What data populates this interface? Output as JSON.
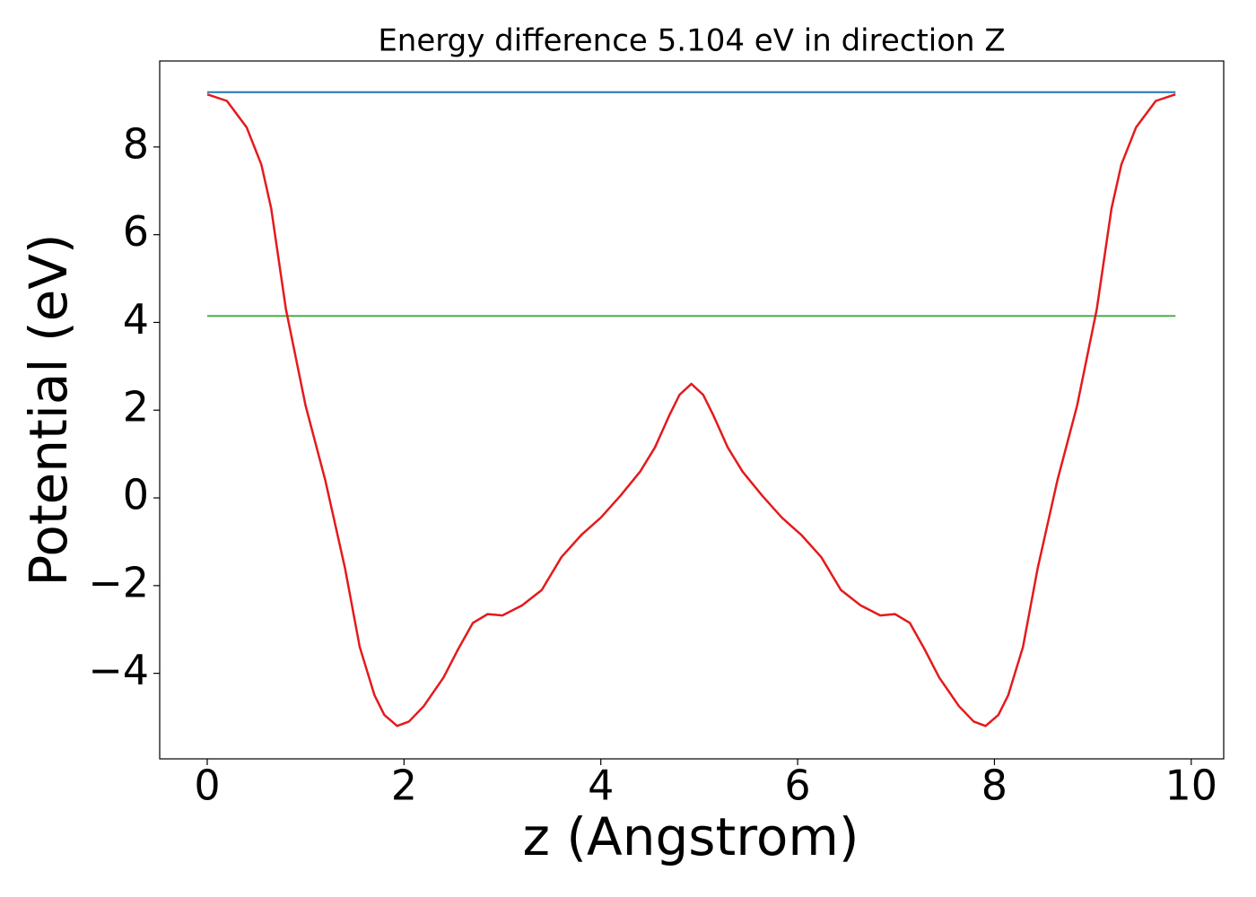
{
  "chart_data": {
    "type": "line",
    "title": "Energy difference 5.104 eV in direction Z",
    "xlabel": "z (Angstrom)",
    "ylabel": "Potential (eV)",
    "xlim": [
      -0.483,
      10.33
    ],
    "ylim": [
      -5.95,
      9.96
    ],
    "xticks": [
      0,
      2,
      4,
      6,
      8,
      10
    ],
    "yticks": [
      {
        "value": -4,
        "label": "−4"
      },
      {
        "value": -2,
        "label": "−2"
      },
      0,
      2,
      4,
      6,
      8
    ],
    "series": [
      {
        "color": "#1f77b4",
        "x": [
          0,
          9.84
        ],
        "values": [
          9.25,
          9.25
        ]
      },
      {
        "color": "#4daf4a",
        "x": [
          0,
          9.84
        ],
        "values": [
          4.146,
          4.146
        ]
      },
      {
        "color": "#e41a1c",
        "x": [
          0,
          0.2,
          0.4,
          0.55,
          0.65,
          0.8,
          1.0,
          1.2,
          1.4,
          1.55,
          1.7,
          1.8,
          1.93,
          2.05,
          2.2,
          2.4,
          2.55,
          2.7,
          2.85,
          3.0,
          3.2,
          3.4,
          3.6,
          3.8,
          4.0,
          4.2,
          4.4,
          4.55,
          4.7,
          4.8,
          4.92,
          5.04,
          5.14,
          5.29,
          5.44,
          5.64,
          5.84,
          6.04,
          6.24,
          6.44,
          6.64,
          6.84,
          6.99,
          7.14,
          7.29,
          7.44,
          7.64,
          7.79,
          7.91,
          8.04,
          8.14,
          8.29,
          8.44,
          8.64,
          8.84,
          9.04,
          9.19,
          9.29,
          9.44,
          9.64,
          9.84
        ],
        "values": [
          9.2,
          9.05,
          8.45,
          7.6,
          6.6,
          4.3,
          2.1,
          0.4,
          -1.6,
          -3.4,
          -4.5,
          -4.95,
          -5.2,
          -5.1,
          -4.75,
          -4.1,
          -3.45,
          -2.85,
          -2.65,
          -2.68,
          -2.45,
          -2.1,
          -1.35,
          -0.85,
          -0.45,
          0.05,
          0.6,
          1.15,
          1.9,
          2.35,
          2.6,
          2.35,
          1.9,
          1.15,
          0.6,
          0.05,
          -0.45,
          -0.85,
          -1.35,
          -2.1,
          -2.45,
          -2.68,
          -2.65,
          -2.85,
          -3.45,
          -4.1,
          -4.75,
          -5.1,
          -5.2,
          -4.95,
          -4.5,
          -3.4,
          -1.6,
          0.4,
          2.1,
          4.3,
          6.6,
          7.6,
          8.45,
          9.05,
          9.2
        ]
      }
    ]
  }
}
